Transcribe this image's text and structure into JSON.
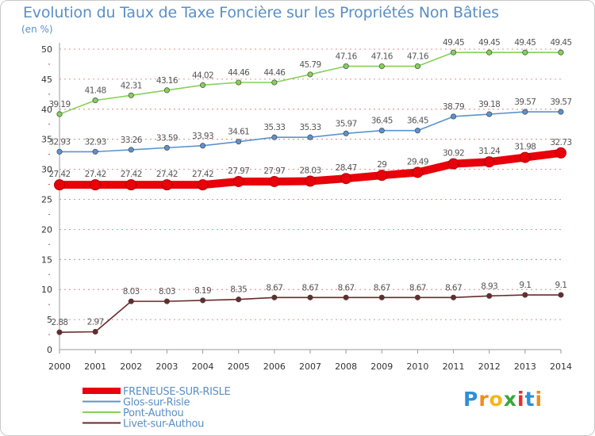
{
  "header": {
    "title": "Evolution du Taux de Taxe Foncière sur les Propriétés Non Bâties",
    "unit": "(en %)"
  },
  "logo": {
    "letters": [
      "P",
      "r",
      "o",
      "x",
      "i",
      "t",
      "i"
    ],
    "colors": [
      "#2e8fd6",
      "#f28c1c",
      "#f5b619",
      "#3aa63a",
      "#e0302a",
      "#2e8fd6",
      "#f28c1c"
    ]
  },
  "chart_data": {
    "type": "line",
    "title": "Evolution du Taux de Taxe Foncière sur les Propriétés Non Bâties",
    "ylabel": "(en %)",
    "xlabel": "",
    "x": [
      "2000",
      "2001",
      "2002",
      "2003",
      "2004",
      "2005",
      "2006",
      "2007",
      "2008",
      "2009",
      "2010",
      "2011",
      "2012",
      "2013",
      "2014"
    ],
    "ylim": [
      0,
      50
    ],
    "yticks": [
      0,
      5,
      10,
      15,
      20,
      25,
      30,
      35,
      40,
      45,
      50
    ],
    "grid": "horizontal dashed",
    "series": [
      {
        "name": "FRENEUSE-SUR-RISLE",
        "color": "#e8000b",
        "thick": true,
        "values": [
          27.42,
          27.42,
          27.42,
          27.42,
          27.42,
          27.97,
          27.97,
          28.03,
          28.47,
          29,
          29.49,
          30.92,
          31.24,
          31.98,
          32.73
        ],
        "labels": [
          "27.42",
          "27.42",
          "27.42",
          "27.42",
          "27.42",
          "27.97",
          "27.97",
          "28.03",
          "28.47",
          "29",
          "29.49",
          "30.92",
          "31.24",
          "31.98",
          "32.73"
        ]
      },
      {
        "name": "Glos-sur-Risle",
        "color": "#5b93cc",
        "thick": false,
        "values": [
          32.93,
          32.93,
          33.26,
          33.59,
          33.93,
          34.61,
          35.33,
          35.33,
          35.97,
          36.45,
          36.45,
          38.79,
          39.18,
          39.57,
          39.57
        ],
        "labels": [
          "32.93",
          "32.93",
          "33.26",
          "33.59",
          "33.93",
          "34.61",
          "35.33",
          "35.33",
          "35.97",
          "36.45",
          "36.45",
          "38.79",
          "39.18",
          "39.57",
          "39.57"
        ]
      },
      {
        "name": "Pont-Authou",
        "color": "#86d05a",
        "thick": false,
        "values": [
          39.19,
          41.48,
          42.31,
          43.16,
          44.02,
          44.46,
          44.46,
          45.79,
          47.16,
          47.16,
          47.16,
          49.45,
          49.45,
          49.45,
          49.45
        ],
        "labels": [
          "39.19",
          "41.48",
          "42.31",
          "43.16",
          "44.02",
          "44.46",
          "44.46",
          "45.79",
          "47.16",
          "47.16",
          "47.16",
          "49.45",
          "49.45",
          "49.45",
          "49.45"
        ]
      },
      {
        "name": "Livet-sur-Authou",
        "color": "#6b2a2a",
        "thick": false,
        "values": [
          2.88,
          2.97,
          8.03,
          8.03,
          8.19,
          8.35,
          8.67,
          8.67,
          8.67,
          8.67,
          8.67,
          8.67,
          8.93,
          9.1,
          9.1
        ],
        "labels": [
          "2.88",
          "2.97",
          "8.03",
          "8.03",
          "8.19",
          "8.35",
          "8.67",
          "8.67",
          "8.67",
          "8.67",
          "8.67",
          "8.67",
          "8.93",
          "9.1",
          "9.1"
        ]
      }
    ]
  }
}
